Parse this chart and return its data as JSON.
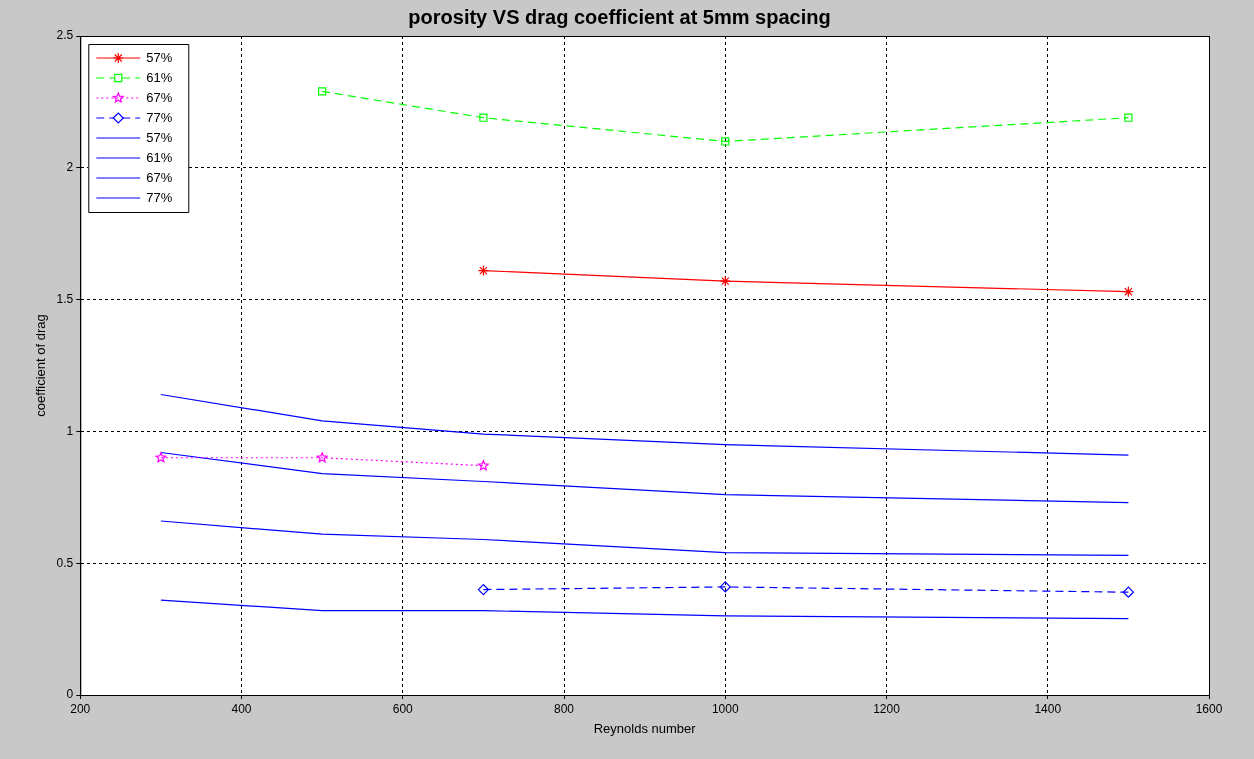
{
  "chart_data": {
    "type": "line",
    "title": "porosity VS drag coefficient at 5mm spacing",
    "xlabel": "Reynolds number",
    "ylabel": "coefficient of drag",
    "xlim": [
      200,
      1600
    ],
    "xticks": [
      200,
      400,
      600,
      800,
      1000,
      1200,
      1400,
      1600
    ],
    "ylim": [
      0,
      2.5
    ],
    "yticks": [
      0,
      0.5,
      1,
      1.5,
      2,
      2.5
    ],
    "grid": true,
    "legend": "top left",
    "series": [
      {
        "name": "57%",
        "color": "#ff0000",
        "marker": "cross",
        "line_style": "solid",
        "x": [
          700,
          1000,
          1500
        ],
        "values": [
          1.61,
          1.57,
          1.53
        ]
      },
      {
        "name": "61%",
        "color": "#00ff00",
        "marker": "square",
        "line_style": "dashed",
        "x": [
          500,
          700,
          1000,
          1500
        ],
        "values": [
          2.29,
          2.19,
          2.1,
          2.19
        ]
      },
      {
        "name": "67%",
        "color": "#ff00ff",
        "marker": "star",
        "line_style": "dotted",
        "x": [
          300,
          500,
          700
        ],
        "values": [
          0.9,
          0.9,
          0.87
        ]
      },
      {
        "name": "77%",
        "color": "#0000ff",
        "marker": "diamond",
        "line_style": "dashed",
        "x": [
          700,
          1000,
          1500
        ],
        "values": [
          0.4,
          0.41,
          0.39
        ]
      },
      {
        "name": "57%",
        "color": "#0000ff",
        "marker": "none",
        "line_style": "solid",
        "x": [
          300,
          500,
          700,
          1000,
          1500
        ],
        "values": [
          1.14,
          1.04,
          0.99,
          0.95,
          0.91
        ]
      },
      {
        "name": "61%",
        "color": "#0000ff",
        "marker": "none",
        "line_style": "solid",
        "x": [
          300,
          500,
          700,
          1000,
          1500
        ],
        "values": [
          0.92,
          0.84,
          0.81,
          0.76,
          0.73
        ]
      },
      {
        "name": "67%",
        "color": "#0000ff",
        "marker": "none",
        "line_style": "solid",
        "x": [
          300,
          500,
          700,
          1000,
          1500
        ],
        "values": [
          0.66,
          0.61,
          0.59,
          0.54,
          0.53
        ]
      },
      {
        "name": "77%",
        "color": "#0000ff",
        "marker": "none",
        "line_style": "solid",
        "x": [
          300,
          500,
          700,
          1000,
          1500
        ],
        "values": [
          0.36,
          0.32,
          0.32,
          0.3,
          0.29
        ]
      }
    ]
  }
}
